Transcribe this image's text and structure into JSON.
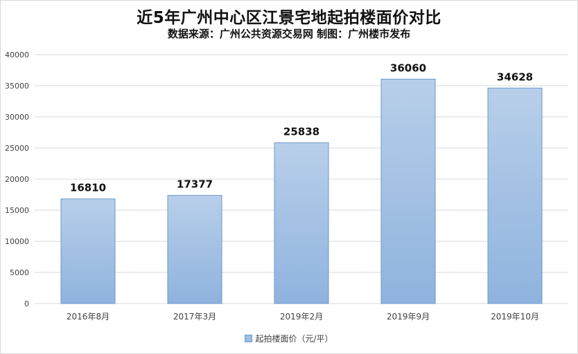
{
  "chart_data": {
    "type": "bar",
    "title": "近5年广州中心区江景宅地起拍楼面价对比",
    "subtitle": "数据来源：广州公共资源交易网 制图：广州楼市发布",
    "categories": [
      "2016年8月",
      "2017年3月",
      "2019年2月",
      "2019年9月",
      "2019年10月"
    ],
    "series": [
      {
        "name": "起拍楼面价（元/平）",
        "values": [
          16810,
          17377,
          25838,
          36060,
          34628
        ]
      }
    ],
    "ylim": [
      0,
      40000
    ],
    "yticks": [
      0,
      5000,
      10000,
      15000,
      20000,
      25000,
      30000,
      35000,
      40000
    ],
    "grid": true,
    "legend": "bottom",
    "colors": {
      "bar_top": "#b8cfea",
      "bar_bottom": "#8fb3de",
      "bar_border": "#6e97c8",
      "grid": "#d9d9d9"
    }
  }
}
